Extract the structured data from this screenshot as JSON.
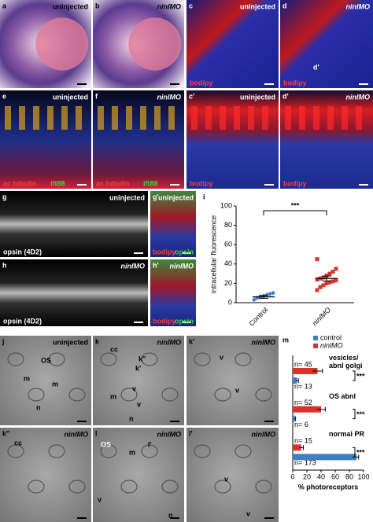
{
  "panels": [
    {
      "label": "a",
      "texts": [
        "uninjected"
      ]
    },
    {
      "label": "b",
      "texts": [
        "ninlMO"
      ]
    },
    {
      "label": "c",
      "texts": [
        "uninjected",
        "bodipy"
      ]
    },
    {
      "label": "d",
      "texts": [
        "ninlMO",
        "bodipy",
        "d'"
      ]
    },
    {
      "label": "e",
      "texts": [
        "uninjected",
        "ac.tubulin",
        "ift88"
      ]
    },
    {
      "label": "f",
      "texts": [
        "ninlMO",
        "ac.tubulin",
        "ift88"
      ]
    },
    {
      "label": "c'",
      "texts": [
        "uninjected",
        "bodipy"
      ]
    },
    {
      "label": "d'",
      "texts": [
        "ninlMO",
        "bodipy"
      ]
    },
    {
      "label": "g",
      "texts": [
        "uninjected",
        "opsin (4D2)"
      ]
    },
    {
      "label": "g'",
      "texts": [
        "uninjected",
        "bodipy",
        "opsin"
      ]
    },
    {
      "label": "h",
      "texts": [
        "ninlMO",
        "opsin (4D2)"
      ]
    },
    {
      "label": "h'",
      "texts": [
        "ninlMO",
        "bodipy",
        "opsin"
      ]
    },
    {
      "label": "j",
      "texts": [
        "uninjected",
        "OS",
        "m",
        "m",
        "n"
      ]
    },
    {
      "label": "k",
      "texts": [
        "ninlMO",
        "cc",
        "k''",
        "k'",
        "v",
        "v",
        "m",
        "n"
      ]
    },
    {
      "label": "k'",
      "texts": [
        "ninlMO",
        "v",
        "v"
      ]
    },
    {
      "label": "k''",
      "texts": [
        "ninlMO",
        "cc"
      ]
    },
    {
      "label": "l",
      "texts": [
        "ninlMO",
        "OS",
        "m",
        "l'",
        "v",
        "n"
      ]
    },
    {
      "label": "l'",
      "texts": [
        "ninlMO",
        "v",
        "v"
      ]
    }
  ],
  "chart_data": [
    {
      "type": "strip",
      "panel_label": "i",
      "ylabel": "intracellular fluorescence",
      "categories": [
        "Control",
        "ninlMO"
      ],
      "colors": [
        "#3f7fc8",
        "#d9342b"
      ],
      "points": [
        [
          3,
          5,
          6,
          7,
          8,
          9,
          10
        ],
        [
          13,
          16,
          18,
          20,
          21,
          22,
          23,
          24,
          25,
          26,
          28,
          30,
          32,
          35,
          45
        ]
      ],
      "means": [
        6,
        25
      ],
      "errors": [
        1.5,
        2.5
      ],
      "significance": "***",
      "ylim": [
        0,
        100
      ],
      "yticks": [
        0,
        20,
        40,
        60,
        80,
        100
      ]
    },
    {
      "type": "hbar",
      "panel_label": "m",
      "xlabel": "% photoreceptors",
      "categories": [
        "vesicles/ abnl golgi",
        "OS abnl",
        "normal PR"
      ],
      "series": [
        {
          "name": "control",
          "color": "#3f7fc8",
          "values": [
            6,
            3,
            90
          ],
          "errors": [
            2,
            1,
            3
          ],
          "n_labels": [
            "n= 13",
            "n= 6",
            "n= 173"
          ]
        },
        {
          "name": "ninlMO",
          "color": "#d9342b",
          "values": [
            35,
            40,
            12
          ],
          "errors": [
            7,
            6,
            3
          ],
          "n_labels": [
            "n= 45",
            "n= 52",
            "n= 15"
          ]
        }
      ],
      "significance": [
        "***",
        "***",
        "***"
      ],
      "xlim": [
        0,
        100
      ],
      "xticks": [
        0,
        20,
        40,
        60,
        80,
        100
      ],
      "legend": "top"
    }
  ]
}
